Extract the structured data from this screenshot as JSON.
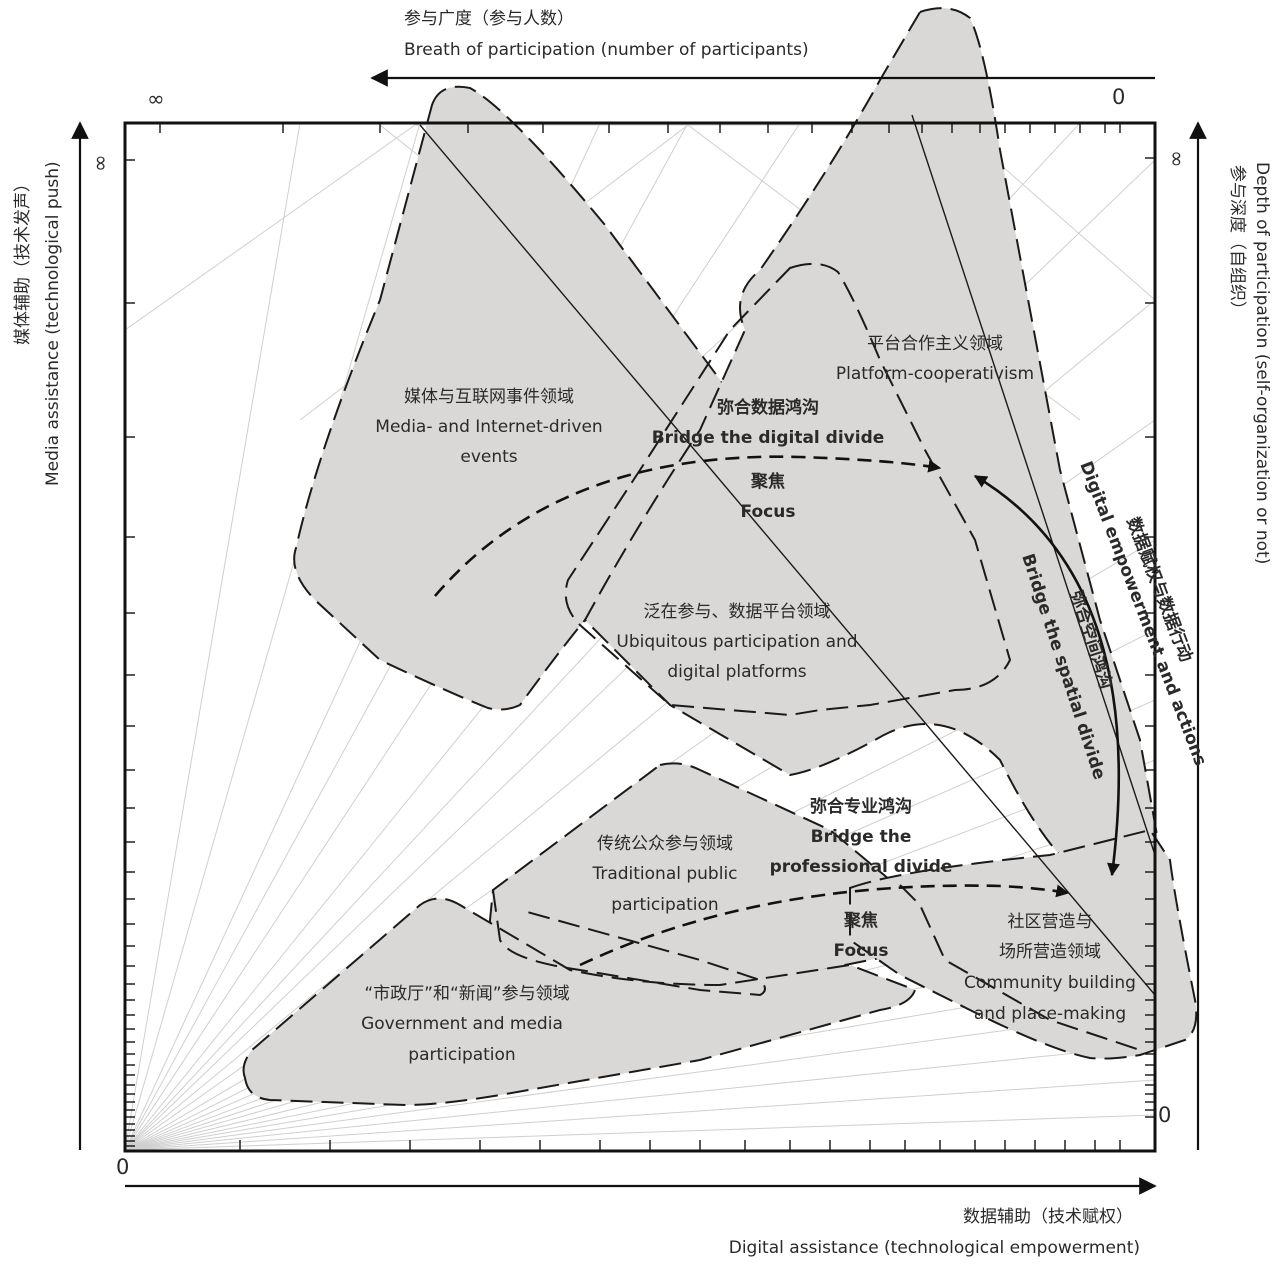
{
  "axes": {
    "top": {
      "zh": "参与广度（参与人数）",
      "en": "Breath of participation (number of participants)",
      "tick_inf": "∞",
      "tick_zero": "0"
    },
    "left": {
      "zh": "媒体辅助（技术发声）",
      "en": "Media assistance (technological push)",
      "tick_inf": "∞",
      "tick_zero": "0"
    },
    "right": {
      "zh": "参与深度（自组织）",
      "en": "Depth of participation (self-organization or not)",
      "tick_inf": "∞",
      "tick_zero": "0"
    },
    "bottom": {
      "zh": "数据辅助（技术赋权）",
      "en": "Digital assistance (technological empowerment)"
    }
  },
  "zones": {
    "media": {
      "zh": "媒体与互联网事件领域",
      "en1": "Media- and Internet-driven",
      "en2": "events"
    },
    "platform": {
      "zh": "平台合作主义领域",
      "en": "Platform-cooperativism"
    },
    "ubiquitous": {
      "zh": "泛在参与、数据平台领域",
      "en1": "Ubiquitous participation and",
      "en2": "digital platforms"
    },
    "traditional": {
      "zh": "传统公众参与领域",
      "en1": "Traditional public",
      "en2": "participation"
    },
    "government": {
      "zh": "“市政厅”和“新闻”参与领域",
      "en1": "Government and media",
      "en2": "participation"
    },
    "community": {
      "zh1": "社区营造与",
      "zh2": "场所营造领域",
      "en1": "Community building",
      "en2": "and place-making"
    }
  },
  "annotations": {
    "digital_divide": {
      "zh": "弥合数据鸿沟",
      "en": "Bridge the digital divide"
    },
    "focus_upper": {
      "zh": "聚焦",
      "en": "Focus"
    },
    "professional_divide": {
      "zh": "弥合专业鸿沟",
      "en1": "Bridge the",
      "en2": "professional divide"
    },
    "focus_lower": {
      "zh": "聚焦",
      "en": "Focus"
    },
    "spatial_divide": {
      "zh": "弥合空间鸿沟",
      "en": "Bridge the spatial divide"
    },
    "empowerment": {
      "zh": "数据赋权与数据行动",
      "en": "Digital empowerment and actions"
    }
  },
  "corner_origin": "0"
}
